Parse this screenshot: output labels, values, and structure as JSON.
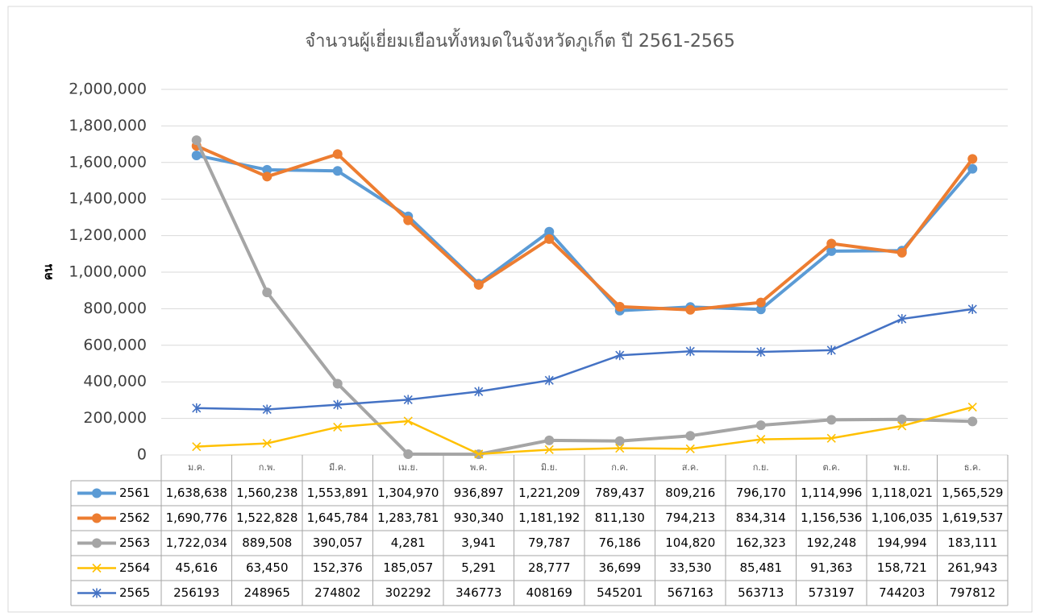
{
  "chart_data": {
    "type": "line",
    "title": "จำนวนผู้เยี่ยมเยือนทั้งหมดในจังหวัดภูเก็ต ปี 2561-2565",
    "y_label": "คน",
    "categories": [
      "ม.ค.",
      "ก.พ.",
      "มี.ค.",
      "เม.ย.",
      "พ.ค.",
      "มิ.ย.",
      "ก.ค.",
      "ส.ค.",
      "ก.ย.",
      "ต.ค.",
      "พ.ย.",
      "ธ.ค."
    ],
    "ylim": [
      0,
      2000000
    ],
    "yticks": [
      0,
      {
        "value": 200000,
        "label": "200,000"
      },
      {
        "value": 400000,
        "label": "400,000"
      },
      {
        "value": 600000,
        "label": "600,000"
      },
      {
        "value": 800000,
        "label": "800,000"
      },
      {
        "value": 1000000,
        "label": "1,000,000"
      },
      {
        "value": 1200000,
        "label": "1,200,000"
      },
      {
        "value": 1400000,
        "label": "1,400,000"
      },
      {
        "value": 1600000,
        "label": "1,600,000"
      },
      {
        "value": 1800000,
        "label": "1,800,000"
      },
      {
        "value": 2000000,
        "label": "2,000,000"
      }
    ],
    "grid": true,
    "series": [
      {
        "name": "2561",
        "color": "#5b9bd5",
        "marker": "circle",
        "values": [
          1638638,
          1560238,
          1553891,
          1304970,
          936897,
          1221209,
          789437,
          809216,
          796170,
          1114996,
          1118021,
          1565529
        ],
        "value_labels": [
          "1,638,638",
          "1,560,238",
          "1,553,891",
          "1,304,970",
          "936,897",
          "1,221,209",
          "789,437",
          "809,216",
          "796,170",
          "1,114,996",
          "1,118,021",
          "1,565,529"
        ]
      },
      {
        "name": "2562",
        "color": "#ed7d31",
        "marker": "circle",
        "values": [
          1690776,
          1522828,
          1645784,
          1283781,
          930340,
          1181192,
          811130,
          794213,
          834314,
          1156536,
          1106035,
          1619537
        ],
        "value_labels": [
          "1,690,776",
          "1,522,828",
          "1,645,784",
          "1,283,781",
          "930,340",
          "1,181,192",
          "811,130",
          "794,213",
          "834,314",
          "1,156,536",
          "1,106,035",
          "1,619,537"
        ]
      },
      {
        "name": "2563",
        "color": "#a5a5a5",
        "marker": "circle",
        "values": [
          1722034,
          889508,
          390057,
          4281,
          3941,
          79787,
          76186,
          104820,
          162323,
          192248,
          194994,
          183111
        ],
        "value_labels": [
          "1,722,034",
          "889,508",
          "390,057",
          "4,281",
          "3,941",
          "79,787",
          "76,186",
          "104,820",
          "162,323",
          "192,248",
          "194,994",
          "183,111"
        ]
      },
      {
        "name": "2564",
        "color": "#ffc000",
        "marker": "x",
        "values": [
          45616,
          63450,
          152376,
          185057,
          5291,
          28777,
          36699,
          33530,
          85481,
          91363,
          158721,
          261943
        ],
        "value_labels": [
          "45,616",
          "63,450",
          "152,376",
          "185,057",
          "5,291",
          "28,777",
          "36,699",
          "33,530",
          "85,481",
          "91,363",
          "158,721",
          "261,943"
        ]
      },
      {
        "name": "2565",
        "color": "#4472c4",
        "marker": "star",
        "values": [
          256193,
          248965,
          274802,
          302292,
          346773,
          408169,
          545201,
          567163,
          563713,
          573197,
          744203,
          797812
        ]
      }
    ]
  }
}
